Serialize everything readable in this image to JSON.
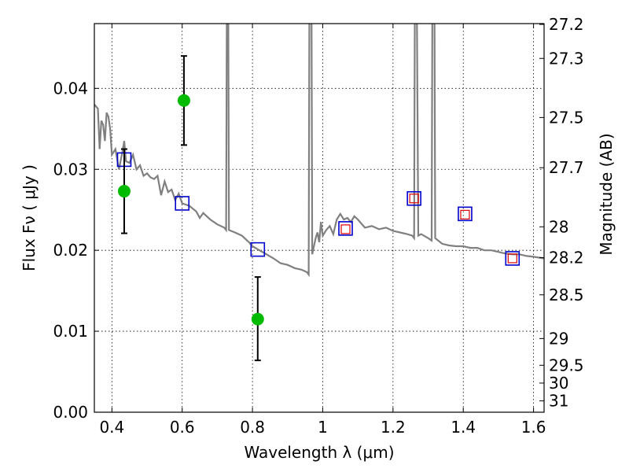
{
  "chart_data": {
    "type": "scatter",
    "xlabel": "Wavelength  λ (μm)",
    "ylabel_left": "Flux  Fν  ( μJy )",
    "ylabel_right": "Magnitude (AB)",
    "xlim": [
      0.35,
      1.63
    ],
    "ylim": [
      0.0,
      0.048
    ],
    "grid": true,
    "x_ticks": [
      {
        "v": 0.4,
        "label": "0.4"
      },
      {
        "v": 0.6,
        "label": "0.6"
      },
      {
        "v": 0.8,
        "label": "0.8"
      },
      {
        "v": 1.0,
        "label": "1"
      },
      {
        "v": 1.2,
        "label": "1.2"
      },
      {
        "v": 1.4,
        "label": "1.4"
      },
      {
        "v": 1.6,
        "label": "1.6"
      }
    ],
    "y_ticks": [
      {
        "v": 0.0,
        "label": "0.00"
      },
      {
        "v": 0.01,
        "label": "0.01"
      },
      {
        "v": 0.02,
        "label": "0.02"
      },
      {
        "v": 0.03,
        "label": "0.03"
      },
      {
        "v": 0.04,
        "label": "0.04"
      }
    ],
    "right_ticks": [
      {
        "label": "27.2",
        "flux": 0.0479
      },
      {
        "label": "27.3",
        "flux": 0.0437
      },
      {
        "label": "27.5",
        "flux": 0.0364
      },
      {
        "label": "27.7",
        "flux": 0.0302
      },
      {
        "label": "28",
        "flux": 0.0229
      },
      {
        "label": "28.2",
        "flux": 0.0191
      },
      {
        "label": "28.5",
        "flux": 0.0145
      },
      {
        "label": "29",
        "flux": 0.0091
      },
      {
        "label": "29.5",
        "flux": 0.0058
      },
      {
        "label": "30",
        "flux": 0.0036
      },
      {
        "label": "31",
        "flux": 0.0014
      }
    ],
    "series": [
      {
        "kind": "model_spectrum",
        "color": "#808080",
        "points": [
          [
            0.35,
            0.038
          ],
          [
            0.36,
            0.0375
          ],
          [
            0.365,
            0.0325
          ],
          [
            0.37,
            0.036
          ],
          [
            0.375,
            0.0355
          ],
          [
            0.38,
            0.0335
          ],
          [
            0.385,
            0.037
          ],
          [
            0.39,
            0.0365
          ],
          [
            0.395,
            0.035
          ],
          [
            0.4,
            0.0318
          ],
          [
            0.41,
            0.0325
          ],
          [
            0.42,
            0.03
          ],
          [
            0.43,
            0.0322
          ],
          [
            0.435,
            0.0335
          ],
          [
            0.44,
            0.031
          ],
          [
            0.45,
            0.0308
          ],
          [
            0.46,
            0.0318
          ],
          [
            0.47,
            0.03
          ],
          [
            0.48,
            0.0305
          ],
          [
            0.49,
            0.0292
          ],
          [
            0.5,
            0.0295
          ],
          [
            0.51,
            0.029
          ],
          [
            0.52,
            0.0288
          ],
          [
            0.53,
            0.0292
          ],
          [
            0.54,
            0.0268
          ],
          [
            0.55,
            0.0285
          ],
          [
            0.56,
            0.0272
          ],
          [
            0.57,
            0.0275
          ],
          [
            0.58,
            0.0262
          ],
          [
            0.59,
            0.027
          ],
          [
            0.6,
            0.0258
          ],
          [
            0.62,
            0.0255
          ],
          [
            0.64,
            0.0248
          ],
          [
            0.65,
            0.024
          ],
          [
            0.66,
            0.0246
          ],
          [
            0.68,
            0.0238
          ],
          [
            0.7,
            0.0232
          ],
          [
            0.72,
            0.0228
          ],
          [
            0.725,
            0.0225
          ],
          [
            0.727,
            0.05
          ],
          [
            0.731,
            0.05
          ],
          [
            0.733,
            0.0225
          ],
          [
            0.75,
            0.0222
          ],
          [
            0.77,
            0.0218
          ],
          [
            0.79,
            0.021
          ],
          [
            0.8,
            0.0205
          ],
          [
            0.82,
            0.02
          ],
          [
            0.84,
            0.0195
          ],
          [
            0.86,
            0.019
          ],
          [
            0.88,
            0.0184
          ],
          [
            0.9,
            0.0182
          ],
          [
            0.92,
            0.0178
          ],
          [
            0.94,
            0.0176
          ],
          [
            0.955,
            0.0173
          ],
          [
            0.96,
            0.017
          ],
          [
            0.962,
            0.05
          ],
          [
            0.968,
            0.05
          ],
          [
            0.97,
            0.0195
          ],
          [
            0.98,
            0.0215
          ],
          [
            0.985,
            0.0222
          ],
          [
            0.99,
            0.021
          ],
          [
            0.995,
            0.0235
          ],
          [
            1.0,
            0.0218
          ],
          [
            1.01,
            0.0225
          ],
          [
            1.02,
            0.023
          ],
          [
            1.03,
            0.022
          ],
          [
            1.04,
            0.0238
          ],
          [
            1.05,
            0.0245
          ],
          [
            1.06,
            0.0238
          ],
          [
            1.07,
            0.024
          ],
          [
            1.08,
            0.0235
          ],
          [
            1.09,
            0.0242
          ],
          [
            1.1,
            0.0238
          ],
          [
            1.12,
            0.0228
          ],
          [
            1.14,
            0.023
          ],
          [
            1.16,
            0.0226
          ],
          [
            1.18,
            0.0228
          ],
          [
            1.2,
            0.0224
          ],
          [
            1.22,
            0.0222
          ],
          [
            1.24,
            0.022
          ],
          [
            1.255,
            0.0218
          ],
          [
            1.26,
            0.0215
          ],
          [
            1.262,
            0.05
          ],
          [
            1.268,
            0.05
          ],
          [
            1.272,
            0.0218
          ],
          [
            1.28,
            0.022
          ],
          [
            1.3,
            0.0215
          ],
          [
            1.31,
            0.0212
          ],
          [
            1.312,
            0.05
          ],
          [
            1.318,
            0.05
          ],
          [
            1.32,
            0.0215
          ],
          [
            1.34,
            0.0208
          ],
          [
            1.36,
            0.0206
          ],
          [
            1.38,
            0.0205
          ],
          [
            1.4,
            0.0205
          ],
          [
            1.42,
            0.0203
          ],
          [
            1.44,
            0.0203
          ],
          [
            1.46,
            0.02
          ],
          [
            1.48,
            0.02
          ],
          [
            1.5,
            0.0198
          ],
          [
            1.52,
            0.0196
          ],
          [
            1.54,
            0.0195
          ],
          [
            1.56,
            0.0195
          ],
          [
            1.58,
            0.0193
          ],
          [
            1.6,
            0.0192
          ],
          [
            1.63,
            0.019
          ]
        ]
      },
      {
        "kind": "model_bandpass_flux",
        "marker": "open-square",
        "color": "#0000cc",
        "points": [
          [
            0.435,
            0.0312
          ],
          [
            0.6,
            0.0258
          ],
          [
            0.815,
            0.0201
          ],
          [
            1.065,
            0.0227
          ],
          [
            1.26,
            0.0264
          ],
          [
            1.405,
            0.0245
          ],
          [
            1.54,
            0.019
          ]
        ]
      },
      {
        "kind": "observed_upper_limit",
        "marker": "open-square",
        "color": "#dd0000",
        "points": [
          [
            1.065,
            0.0226
          ],
          [
            1.26,
            0.0264
          ],
          [
            1.405,
            0.0244
          ],
          [
            1.54,
            0.019
          ]
        ]
      },
      {
        "kind": "observed_detection",
        "marker": "filled-circle",
        "color": "#00bb00",
        "errorbar_color": "#000000",
        "points": [
          {
            "x": 0.435,
            "y": 0.0273,
            "lo": 0.0221,
            "hi": 0.0325
          },
          {
            "x": 0.605,
            "y": 0.0385,
            "lo": 0.033,
            "hi": 0.044
          },
          {
            "x": 0.815,
            "y": 0.0115,
            "lo": 0.0064,
            "hi": 0.0167
          }
        ]
      }
    ]
  }
}
